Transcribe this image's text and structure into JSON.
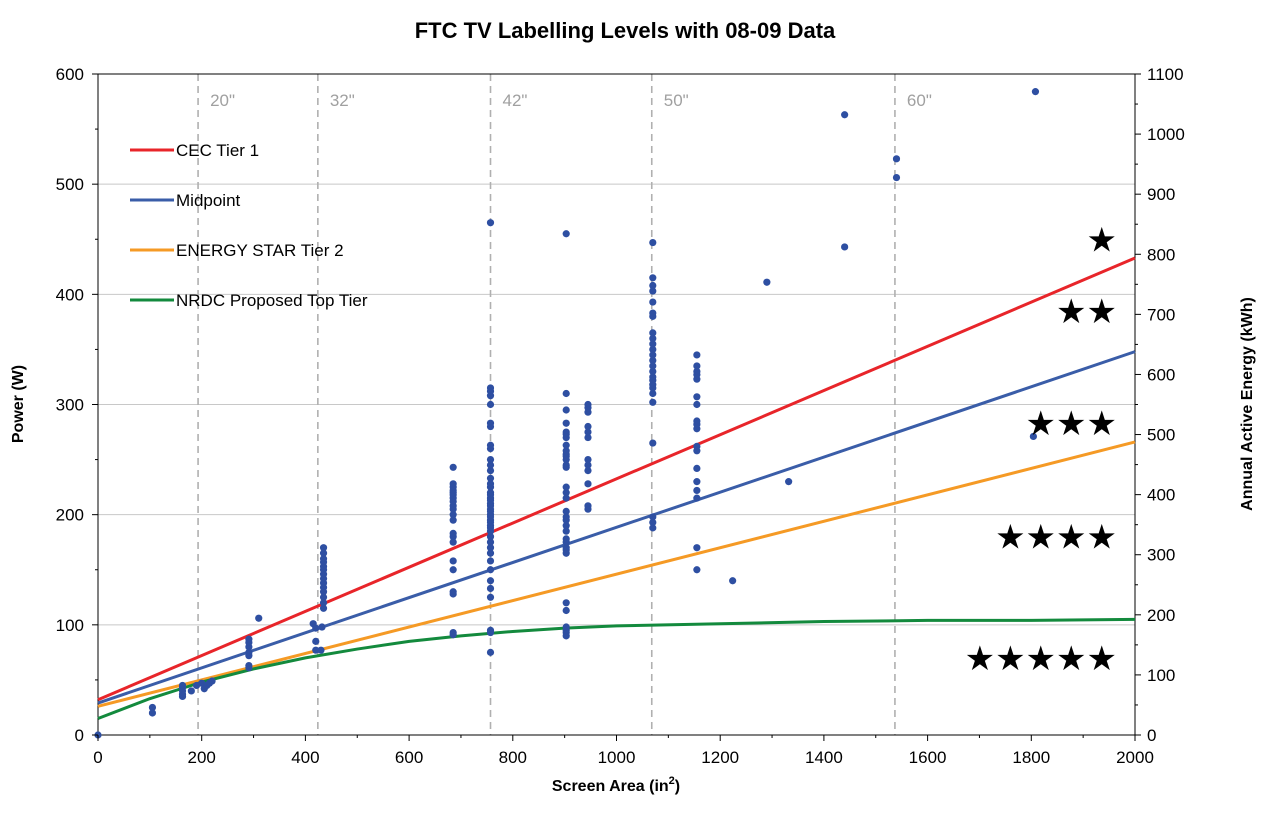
{
  "chart_data": {
    "type": "scatter",
    "title": "FTC TV Labelling Levels with 08-09 Data",
    "xlabel": "Screen Area (in",
    "xlabel_sup": "2",
    "xlabel_end": ")",
    "ylabel": "Power (W)",
    "y2label": "Annual Active Energy (kWh)",
    "xlim": [
      0,
      2000
    ],
    "ylim": [
      0,
      600
    ],
    "y2lim": [
      0,
      1100
    ],
    "xticks": [
      0,
      200,
      400,
      600,
      800,
      1000,
      1200,
      1400,
      1600,
      1800,
      2000
    ],
    "xtick_labels": [
      "0",
      "200",
      "400",
      "600",
      "800",
      "1000",
      "1200",
      "1400",
      "1600",
      "1800",
      "2000"
    ],
    "yticks": [
      0,
      100,
      200,
      300,
      400,
      500,
      600
    ],
    "ytick_labels": [
      "0",
      "100",
      "200",
      "300",
      "400",
      "500",
      "600"
    ],
    "y2ticks": [
      0,
      100,
      200,
      300,
      400,
      500,
      600,
      700,
      800,
      900,
      1000,
      1100
    ],
    "y2tick_labels": [
      "0",
      "100",
      "200",
      "300",
      "400",
      "500",
      "600",
      "700",
      "800",
      "900",
      "1000",
      "1100"
    ],
    "gridlines": "horizontal",
    "legend_position": "top-left",
    "screen_sizes": [
      {
        "label": "20\"",
        "x": 193
      },
      {
        "label": "32\"",
        "x": 424
      },
      {
        "label": "42\"",
        "x": 757
      },
      {
        "label": "50\"",
        "x": 1068
      },
      {
        "label": "60\"",
        "x": 1537
      }
    ],
    "series": [
      {
        "name": "CEC Tier 1",
        "type": "line",
        "color": "#e8252a",
        "x": [
          0,
          2000
        ],
        "y": [
          32,
          433
        ]
      },
      {
        "name": "Midpoint",
        "type": "line",
        "color": "#3a5da8",
        "x": [
          0,
          2000
        ],
        "y": [
          29,
          348
        ]
      },
      {
        "name": "ENERGY STAR Tier 2",
        "type": "line",
        "color": "#f59a25",
        "x": [
          0,
          2000
        ],
        "y": [
          26,
          266
        ]
      },
      {
        "name": "NRDC Proposed Top Tier",
        "type": "line",
        "color": "#138a3d",
        "x": [
          0,
          100,
          200,
          300,
          400,
          500,
          600,
          700,
          800,
          900,
          1000,
          1200,
          1400,
          1600,
          1800,
          2000
        ],
        "y": [
          15,
          33,
          48,
          60,
          70,
          78,
          85,
          90,
          94,
          97,
          99,
          101,
          103,
          104,
          104,
          105
        ]
      },
      {
        "name": "08-09 Data",
        "type": "scatter",
        "color": "#2e4fa2",
        "points": [
          [
            0,
            0
          ],
          [
            105,
            20
          ],
          [
            105,
            25
          ],
          [
            163,
            35
          ],
          [
            163,
            37
          ],
          [
            163,
            40
          ],
          [
            163,
            43
          ],
          [
            163,
            45
          ],
          [
            180,
            40
          ],
          [
            190,
            45
          ],
          [
            200,
            47
          ],
          [
            205,
            42
          ],
          [
            210,
            45
          ],
          [
            215,
            47
          ],
          [
            220,
            49
          ],
          [
            291,
            61
          ],
          [
            291,
            63
          ],
          [
            291,
            72
          ],
          [
            291,
            75
          ],
          [
            291,
            80
          ],
          [
            291,
            84
          ],
          [
            291,
            87
          ],
          [
            310,
            106
          ],
          [
            415,
            101
          ],
          [
            420,
            77
          ],
          [
            420,
            85
          ],
          [
            420,
            97
          ],
          [
            430,
            77
          ],
          [
            432,
            98
          ],
          [
            435,
            115
          ],
          [
            435,
            120
          ],
          [
            435,
            125
          ],
          [
            435,
            130
          ],
          [
            435,
            134
          ],
          [
            435,
            138
          ],
          [
            435,
            142
          ],
          [
            435,
            146
          ],
          [
            435,
            150
          ],
          [
            435,
            153
          ],
          [
            435,
            157
          ],
          [
            435,
            160
          ],
          [
            435,
            165
          ],
          [
            435,
            170
          ],
          [
            685,
            91
          ],
          [
            685,
            93
          ],
          [
            685,
            128
          ],
          [
            685,
            130
          ],
          [
            685,
            150
          ],
          [
            685,
            158
          ],
          [
            685,
            175
          ],
          [
            685,
            180
          ],
          [
            685,
            183
          ],
          [
            685,
            195
          ],
          [
            685,
            200
          ],
          [
            685,
            205
          ],
          [
            685,
            208
          ],
          [
            685,
            212
          ],
          [
            685,
            215
          ],
          [
            685,
            218
          ],
          [
            685,
            220
          ],
          [
            685,
            222
          ],
          [
            685,
            225
          ],
          [
            685,
            228
          ],
          [
            685,
            243
          ],
          [
            757,
            75
          ],
          [
            757,
            93
          ],
          [
            757,
            95
          ],
          [
            757,
            125
          ],
          [
            757,
            133
          ],
          [
            757,
            140
          ],
          [
            757,
            150
          ],
          [
            757,
            158
          ],
          [
            757,
            165
          ],
          [
            757,
            170
          ],
          [
            757,
            175
          ],
          [
            757,
            180
          ],
          [
            757,
            185
          ],
          [
            757,
            188
          ],
          [
            757,
            190
          ],
          [
            757,
            193
          ],
          [
            757,
            195
          ],
          [
            757,
            198
          ],
          [
            757,
            200
          ],
          [
            757,
            203
          ],
          [
            757,
            205
          ],
          [
            757,
            208
          ],
          [
            757,
            210
          ],
          [
            757,
            213
          ],
          [
            757,
            215
          ],
          [
            757,
            218
          ],
          [
            757,
            220
          ],
          [
            757,
            225
          ],
          [
            757,
            228
          ],
          [
            757,
            233
          ],
          [
            757,
            240
          ],
          [
            757,
            245
          ],
          [
            757,
            250
          ],
          [
            757,
            260
          ],
          [
            757,
            263
          ],
          [
            757,
            280
          ],
          [
            757,
            283
          ],
          [
            757,
            300
          ],
          [
            757,
            308
          ],
          [
            757,
            312
          ],
          [
            757,
            315
          ],
          [
            757,
            465
          ],
          [
            903,
            90
          ],
          [
            903,
            93
          ],
          [
            903,
            95
          ],
          [
            903,
            98
          ],
          [
            903,
            113
          ],
          [
            903,
            120
          ],
          [
            903,
            165
          ],
          [
            903,
            168
          ],
          [
            903,
            170
          ],
          [
            903,
            175
          ],
          [
            903,
            178
          ],
          [
            903,
            185
          ],
          [
            903,
            190
          ],
          [
            903,
            195
          ],
          [
            903,
            198
          ],
          [
            903,
            203
          ],
          [
            903,
            215
          ],
          [
            903,
            220
          ],
          [
            903,
            225
          ],
          [
            903,
            243
          ],
          [
            903,
            245
          ],
          [
            903,
            250
          ],
          [
            903,
            253
          ],
          [
            903,
            255
          ],
          [
            903,
            258
          ],
          [
            903,
            263
          ],
          [
            903,
            270
          ],
          [
            903,
            273
          ],
          [
            903,
            275
          ],
          [
            903,
            283
          ],
          [
            903,
            295
          ],
          [
            903,
            310
          ],
          [
            903,
            455
          ],
          [
            945,
            205
          ],
          [
            945,
            208
          ],
          [
            945,
            228
          ],
          [
            945,
            240
          ],
          [
            945,
            245
          ],
          [
            945,
            250
          ],
          [
            945,
            270
          ],
          [
            945,
            275
          ],
          [
            945,
            280
          ],
          [
            945,
            293
          ],
          [
            945,
            297
          ],
          [
            945,
            300
          ],
          [
            1070,
            188
          ],
          [
            1070,
            193
          ],
          [
            1070,
            198
          ],
          [
            1070,
            265
          ],
          [
            1070,
            302
          ],
          [
            1070,
            310
          ],
          [
            1070,
            315
          ],
          [
            1070,
            318
          ],
          [
            1070,
            322
          ],
          [
            1070,
            325
          ],
          [
            1070,
            330
          ],
          [
            1070,
            335
          ],
          [
            1070,
            340
          ],
          [
            1070,
            345
          ],
          [
            1070,
            350
          ],
          [
            1070,
            355
          ],
          [
            1070,
            360
          ],
          [
            1070,
            365
          ],
          [
            1070,
            380
          ],
          [
            1070,
            383
          ],
          [
            1070,
            393
          ],
          [
            1070,
            403
          ],
          [
            1070,
            408
          ],
          [
            1070,
            415
          ],
          [
            1070,
            447
          ],
          [
            1155,
            150
          ],
          [
            1155,
            170
          ],
          [
            1155,
            215
          ],
          [
            1155,
            222
          ],
          [
            1155,
            230
          ],
          [
            1155,
            242
          ],
          [
            1155,
            258
          ],
          [
            1155,
            262
          ],
          [
            1155,
            278
          ],
          [
            1155,
            282
          ],
          [
            1155,
            285
          ],
          [
            1155,
            300
          ],
          [
            1155,
            307
          ],
          [
            1155,
            323
          ],
          [
            1155,
            327
          ],
          [
            1155,
            330
          ],
          [
            1155,
            335
          ],
          [
            1155,
            345
          ],
          [
            1224,
            140
          ],
          [
            1290,
            411
          ],
          [
            1332,
            230
          ],
          [
            1440,
            443
          ],
          [
            1440,
            563
          ],
          [
            1540,
            506
          ],
          [
            1540,
            523
          ],
          [
            1804,
            271
          ],
          [
            1808,
            584
          ]
        ]
      }
    ],
    "star_labels": [
      {
        "stars": "★",
        "y": 450
      },
      {
        "stars": "★★",
        "y": 385
      },
      {
        "stars": "★★★",
        "y": 283
      },
      {
        "stars": "★★★★",
        "y": 180
      },
      {
        "stars": "★★★★★",
        "y": 70
      }
    ]
  }
}
